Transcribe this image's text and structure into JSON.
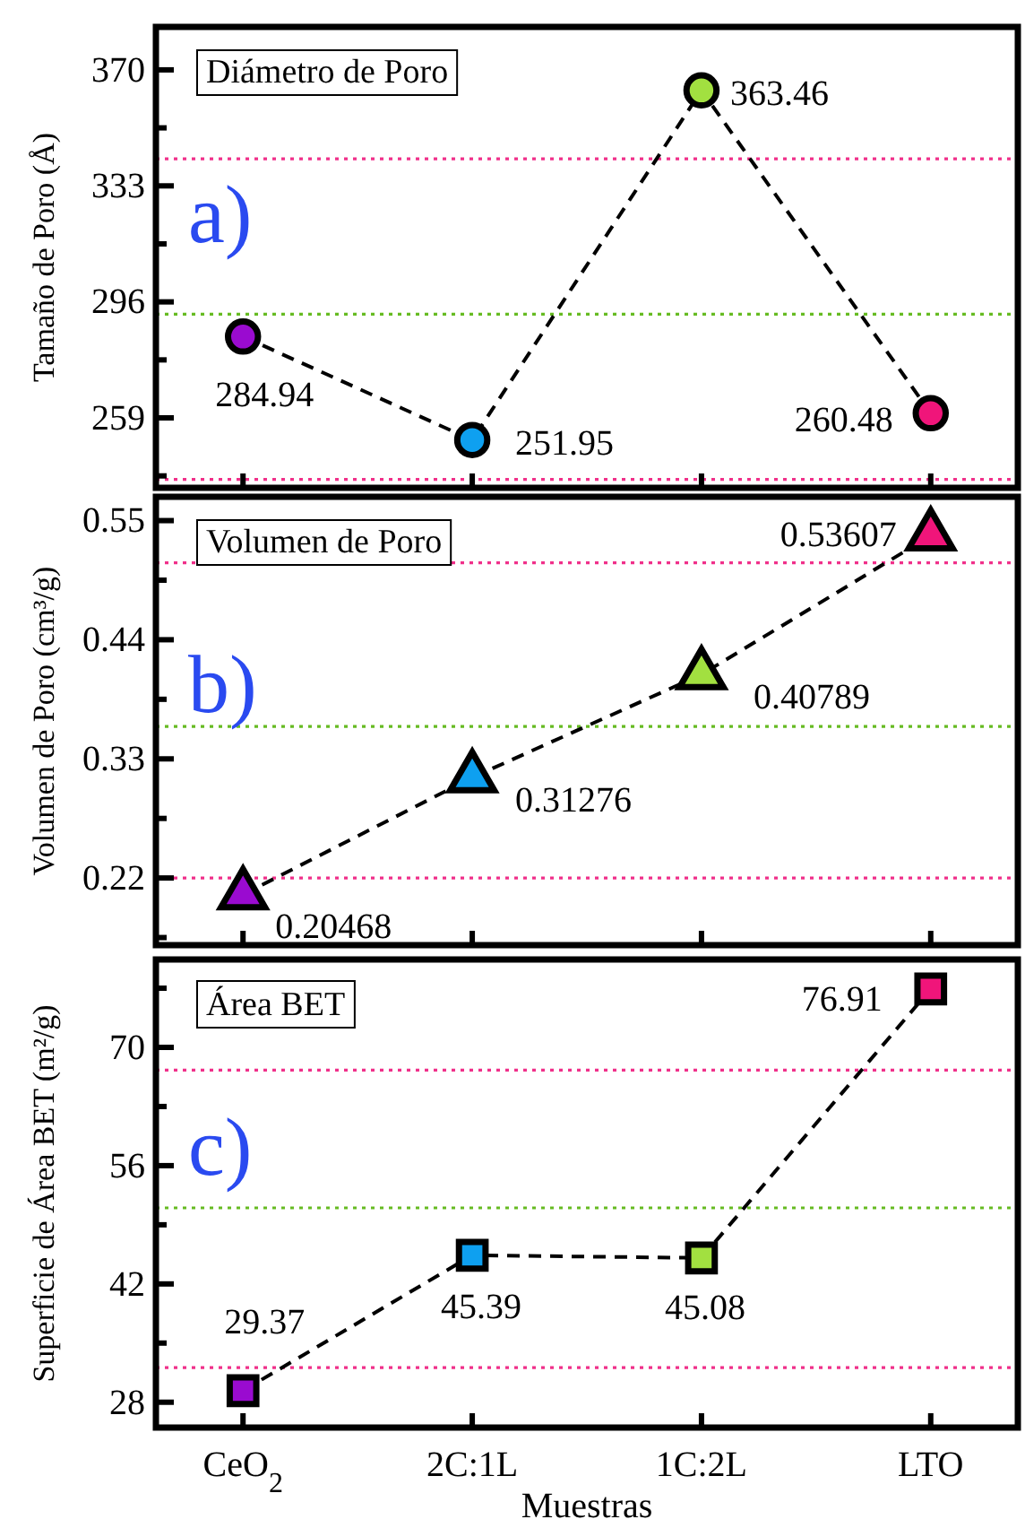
{
  "chart_data": [
    {
      "type": "line",
      "title": "Diámetro de Poro",
      "ylabel": "Tamaño de Poro (Å)",
      "annotations": [
        "a)"
      ],
      "categories": [
        null,
        null,
        null,
        null
      ],
      "series": [
        {
          "color": "#000000",
          "colors": [
            "#9a0bd0",
            "#0ea0f0",
            "#a2e040",
            "#f0157a"
          ],
          "values": [
            284.94,
            251.95,
            363.46,
            260.48
          ]
        }
      ],
      "ylim": [
        236.7,
        383.7
      ],
      "yticks": [
        {
          "value": 240.5,
          "label": null
        },
        259,
        {
          "value": 277.5,
          "label": null
        },
        296,
        {
          "value": 314.5,
          "label": null
        },
        333,
        {
          "value": 351.5,
          "label": null
        },
        370
      ],
      "ref_lines": [
        {
          "axis": "y",
          "value": 341.6,
          "color": "#f0308a",
          "line_style": "dotted"
        },
        {
          "axis": "y",
          "value": 292.1,
          "color": "#66bb22",
          "line_style": "dotted"
        },
        {
          "axis": "y",
          "value": 239.4,
          "color": "#f0308a",
          "line_style": "dotted"
        }
      ],
      "marker": "circle",
      "line_style": "dashed",
      "data_labels": true,
      "tick_labels": "y"
    },
    {
      "type": "line",
      "title": "Volumen de Poro",
      "ylabel": "Volumen de Poro (cm³/g)",
      "annotations": [
        "b)"
      ],
      "categories": [
        null,
        null,
        null,
        null
      ],
      "series": [
        {
          "color": "#000000",
          "colors": [
            "#9a0bd0",
            "#0ea0f0",
            "#a2e040",
            "#f0157a"
          ],
          "values": [
            0.20468,
            0.31276,
            0.40789,
            0.53607
          ]
        }
      ],
      "ylim": [
        0.158,
        0.572
      ],
      "yticks": [
        {
          "value": 0.165,
          "label": null
        },
        0.22,
        {
          "value": 0.275,
          "label": null
        },
        0.33,
        {
          "value": 0.385,
          "label": null
        },
        0.44,
        {
          "value": 0.495,
          "label": null
        },
        0.55
      ],
      "ref_lines": [
        {
          "axis": "y",
          "value": 0.511,
          "color": "#f0308a",
          "line_style": "dotted"
        },
        {
          "axis": "y",
          "value": 0.36,
          "color": "#66bb22",
          "line_style": "dotted"
        },
        {
          "axis": "y",
          "value": 0.22,
          "color": "#f0308a",
          "line_style": "dotted"
        }
      ],
      "marker": "triangle",
      "line_style": "dashed",
      "data_labels": true,
      "tick_labels": "y"
    },
    {
      "type": "line",
      "title": "Área BET",
      "xlabel": "Muestras",
      "ylabel": "Superficie de Área BET (m²/g)",
      "annotations": [
        "c)"
      ],
      "categories": [
        "CeO$_{2}$",
        "2C:1L",
        "1C:2L",
        "LTO"
      ],
      "series": [
        {
          "color": "#000000",
          "colors": [
            "#9a0bd0",
            "#0ea0f0",
            "#a2e040",
            "#f0157a"
          ],
          "values": [
            29.37,
            45.39,
            45.08,
            76.91
          ]
        }
      ],
      "ylim": [
        25.0,
        80.4
      ],
      "yticks": [
        28,
        {
          "value": 35,
          "label": null
        },
        42,
        {
          "value": 49,
          "label": null
        },
        56,
        {
          "value": 63,
          "label": null
        },
        70,
        {
          "value": 77,
          "label": null
        }
      ],
      "ref_lines": [
        {
          "axis": "y",
          "value": 67.3,
          "color": "#f0308a",
          "line_style": "dotted"
        },
        {
          "axis": "y",
          "value": 51.0,
          "color": "#66bb22",
          "line_style": "dotted"
        },
        {
          "axis": "y",
          "value": 32.1,
          "color": "#f0308a",
          "line_style": "dotted"
        }
      ],
      "marker": "square",
      "line_style": "dashed",
      "data_labels": true
    }
  ]
}
